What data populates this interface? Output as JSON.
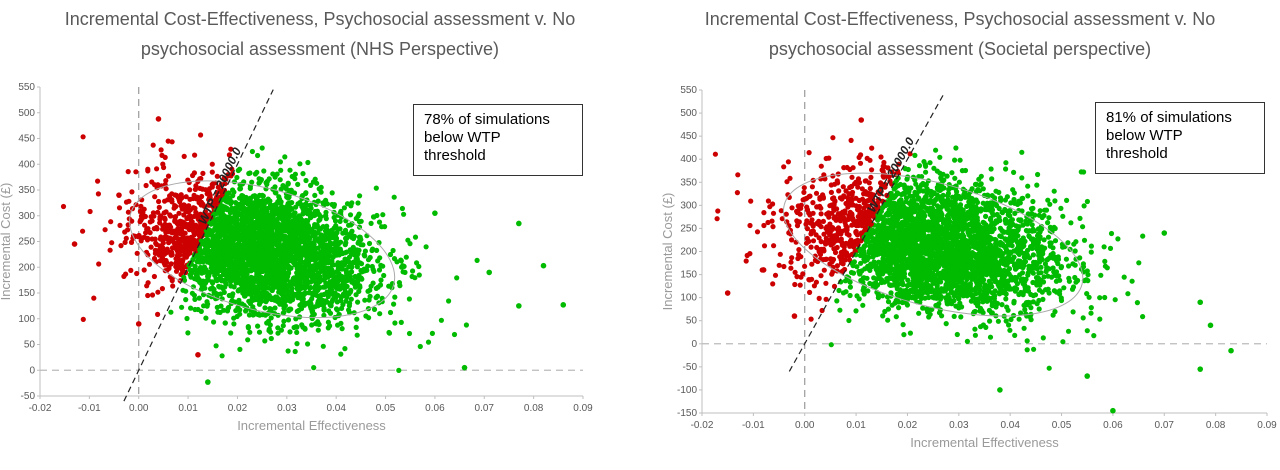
{
  "chart_data": [
    {
      "type": "scatter",
      "title_line1": "Incremental Cost-Effectiveness, Psychosocial assessment v. No",
      "title_line2": "psychosocial assessment (NHS Perspective)",
      "xlabel": "Incremental Effectiveness",
      "ylabel": "Incremental Cost (£)",
      "xlim": [
        -0.02,
        0.09
      ],
      "ylim": [
        -50,
        550
      ],
      "xticks": [
        "-0.02",
        "-0.01",
        "0.00",
        "0.01",
        "0.02",
        "0.03",
        "0.04",
        "0.05",
        "0.06",
        "0.07",
        "0.08",
        "0.09"
      ],
      "yticks": [
        "550",
        "500",
        "450",
        "400",
        "350",
        "300",
        "250",
        "200",
        "150",
        "100",
        "50",
        "0",
        "-50"
      ],
      "wtp_label": "WTP = 20000.0",
      "wtp_threshold": 20000,
      "annotation": [
        "78% of simulations",
        "below WTP",
        "threshold"
      ],
      "cloud": {
        "center_x": 0.025,
        "center_y": 235,
        "sd_x": 0.0115,
        "sd_y": 62
      },
      "series": [
        {
          "name": "",
          "color": "#cc0000",
          "points": [
            [
              -0.013,
              245
            ],
            [
              0.004,
              488
            ],
            [
              0.0,
              90
            ],
            [
              0.012,
              30
            ],
            [
              -0.004,
              340
            ]
          ]
        },
        {
          "name": "",
          "color": "#00bb00",
          "points": [
            [
              0.086,
              127
            ],
            [
              0.082,
              203
            ],
            [
              0.077,
              285
            ],
            [
              0.077,
              125
            ],
            [
              0.071,
              190
            ],
            [
              0.066,
              5
            ],
            [
              0.014,
              -23
            ],
            [
              0.06,
              305
            ]
          ]
        }
      ],
      "grid": false
    },
    {
      "type": "scatter",
      "title_line1": "Incremental Cost-Effectiveness, Psychosocial assessment v. No",
      "title_line2": "psychosocial assessment (Societal perspective)",
      "xlabel": "Incremental Effectiveness",
      "ylabel": "Incremental Cost (£)",
      "xlim": [
        -0.02,
        0.09
      ],
      "ylim": [
        -150,
        550
      ],
      "xticks": [
        "-0.02",
        "-0.01",
        "0.00",
        "0.01",
        "0.02",
        "0.03",
        "0.04",
        "0.05",
        "0.06",
        "0.07",
        "0.08",
        "0.09"
      ],
      "yticks": [
        "550",
        "500",
        "450",
        "400",
        "350",
        "300",
        "250",
        "200",
        "150",
        "100",
        "50",
        "0",
        "-50",
        "-100",
        "-150"
      ],
      "wtp_label": "WTP = 20000.0",
      "wtp_threshold": 20000,
      "annotation": [
        "81% of simulations",
        "below WTP",
        "threshold"
      ],
      "cloud": {
        "center_x": 0.025,
        "center_y": 215,
        "sd_x": 0.0125,
        "sd_y": 70
      },
      "series": [
        {
          "name": "",
          "color": "#cc0000",
          "points": [
            [
              -0.015,
              110
            ],
            [
              -0.002,
              60
            ],
            [
              0.011,
              485
            ],
            [
              -0.008,
              160
            ]
          ]
        },
        {
          "name": "",
          "color": "#00bb00",
          "points": [
            [
              0.083,
              -15
            ],
            [
              0.079,
              40
            ],
            [
              0.077,
              90
            ],
            [
              0.077,
              -55
            ],
            [
              0.07,
              240
            ],
            [
              0.06,
              -145
            ],
            [
              0.038,
              -100
            ],
            [
              0.055,
              -70
            ]
          ]
        }
      ],
      "grid": false
    }
  ]
}
